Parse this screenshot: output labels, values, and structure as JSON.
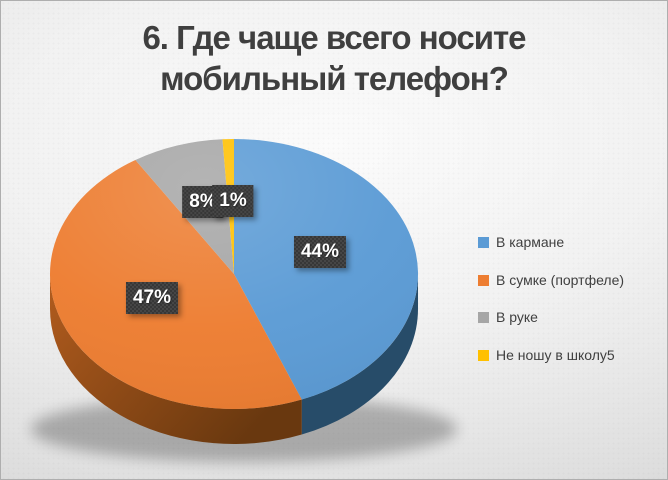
{
  "slide": {
    "background_center": "#fbfbfb",
    "background_edge": "#d4d4d4",
    "border_color": "#aeaeae"
  },
  "title": {
    "line1": "6. Где чаще всего носите",
    "line2": "мобильный телефон?",
    "color": "#3f3f3f"
  },
  "chart_data": {
    "type": "pie",
    "style": "3d-pie",
    "title": "6. Где чаще всего носите мобильный телефон?",
    "categories": [
      "В кармане",
      "В сумке (портфеле)",
      "В руке",
      "Не ношу в школу5"
    ],
    "values": [
      44,
      47,
      8,
      1
    ],
    "unit": "percent",
    "data_labels": [
      "44%",
      "47%",
      "8%",
      "1%"
    ],
    "colors": [
      "#5b9bd5",
      "#ed7d31",
      "#a6a6a6",
      "#ffc000"
    ],
    "side_gradients": [
      [
        "#35638c",
        "#274c69"
      ],
      [
        "#b25c1e",
        "#69380f"
      ],
      [
        "#6f6f6f",
        "#565656"
      ],
      [
        "#9e7700",
        "#7a5c00"
      ]
    ],
    "start_angle_deg": 0,
    "direction": "clockwise",
    "legend_position": "right",
    "data_label_style": {
      "background": "#3d3d3d",
      "text_color": "#ffffff"
    }
  }
}
